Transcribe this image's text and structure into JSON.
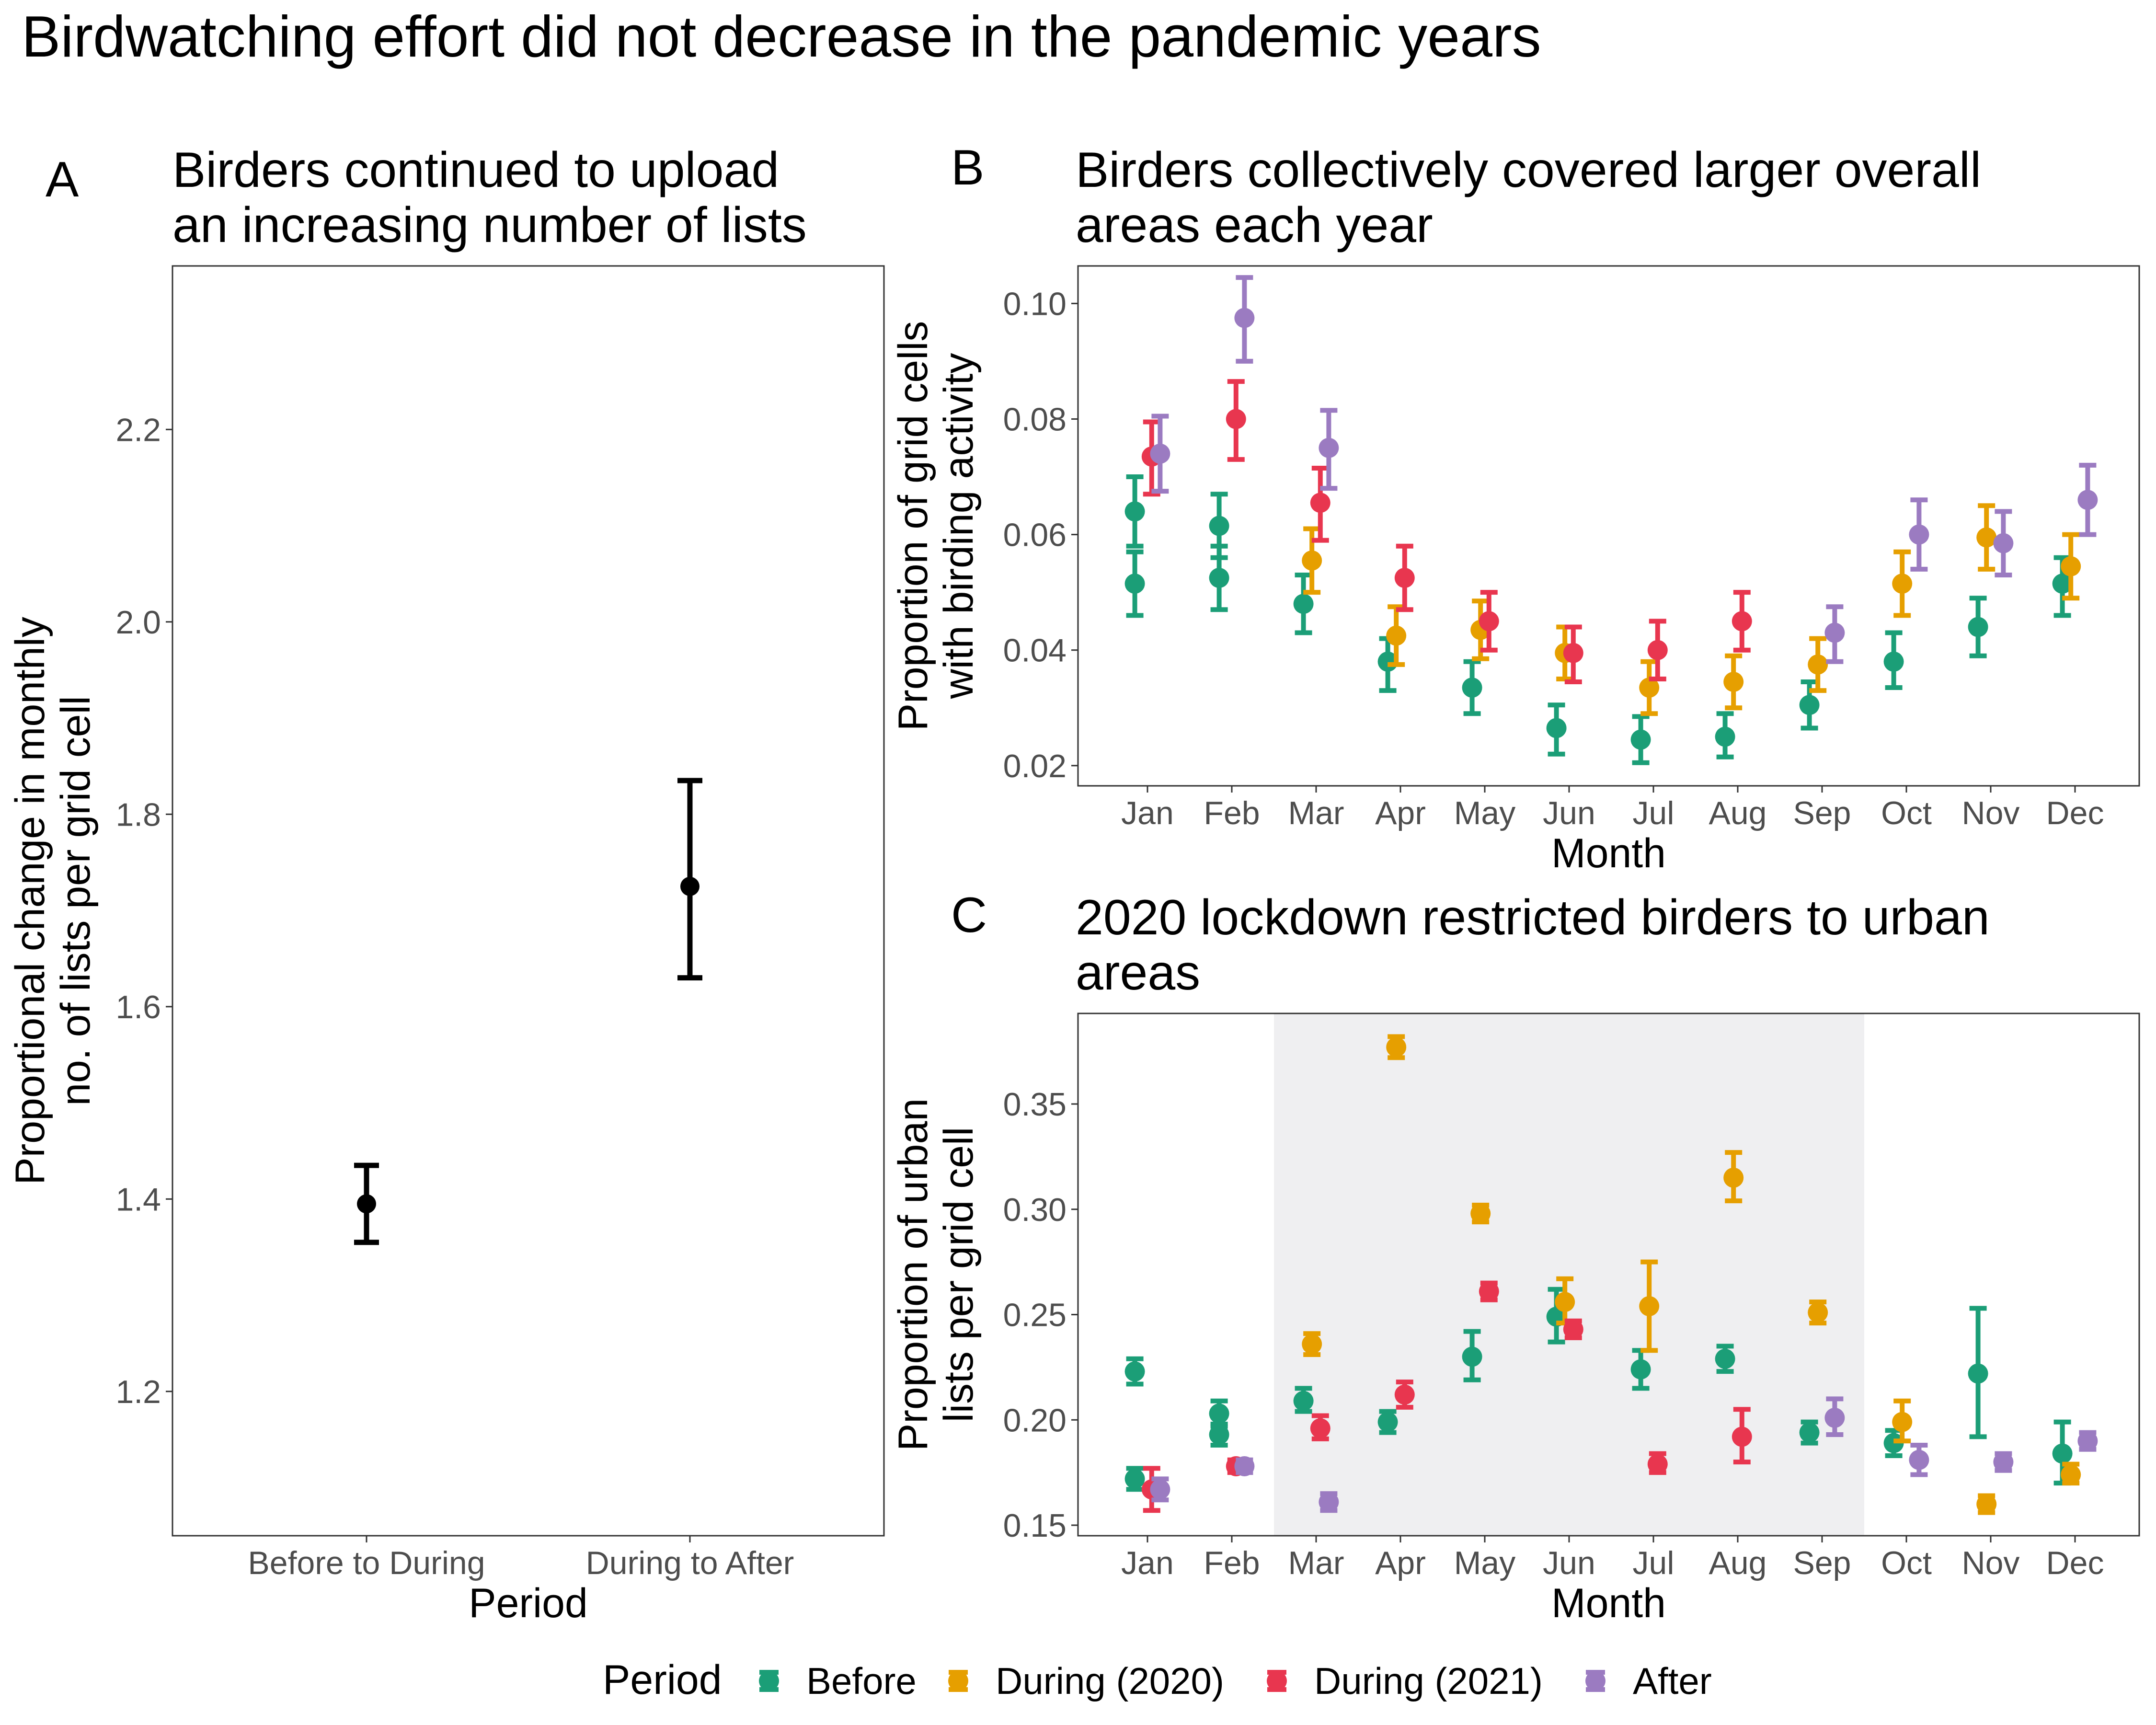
{
  "title": "Birdwatching effort did not decrease in the pandemic years",
  "colors": {
    "Before": "#1b9e77",
    "During (2020)": "#e69f00",
    "During (2021)": "#e8364f",
    "After": "#9b7bc1",
    "single": "#000000",
    "shade": "#efeff1"
  },
  "legend": {
    "title": "Period",
    "items": [
      "Before",
      "During (2020)",
      "During (2021)",
      "After"
    ]
  },
  "chart_data": [
    {
      "id": "A",
      "type": "scatter",
      "letter": "A",
      "title_lines": [
        "Birders continued to upload",
        "an increasing number of lists"
      ],
      "xlabel": "Period",
      "ylabel_lines": [
        "Proportional change in monthly",
        "no. of lists per grid cell"
      ],
      "categories": [
        "Before to During",
        "During to After"
      ],
      "ylim": [
        1.05,
        2.37
      ],
      "yticks": [
        1.2,
        1.4,
        1.6,
        1.8,
        2.0,
        2.2
      ],
      "ytick_labels": [
        "1.2",
        "1.4",
        "1.6",
        "1.8",
        "2.0",
        "2.2"
      ],
      "points": [
        {
          "category": "Before to During",
          "y": 1.395,
          "low": 1.355,
          "high": 1.435
        },
        {
          "category": "During to After",
          "y": 1.725,
          "low": 1.63,
          "high": 1.835
        }
      ]
    },
    {
      "id": "B",
      "type": "scatter",
      "letter": "B",
      "title_lines": [
        "Birders collectively covered larger overall",
        "areas each year"
      ],
      "xlabel": "Month",
      "ylabel_lines": [
        "Proportion of grid cells",
        "with birding activity"
      ],
      "categories": [
        "Jan",
        "Feb",
        "Mar",
        "Apr",
        "May",
        "Jun",
        "Jul",
        "Aug",
        "Sep",
        "Oct",
        "Nov",
        "Dec"
      ],
      "ylim": [
        0.0165,
        0.1065
      ],
      "yticks": [
        0.02,
        0.04,
        0.06,
        0.08,
        0.1
      ],
      "ytick_labels": [
        "0.02",
        "0.04",
        "0.06",
        "0.08",
        "0.10"
      ],
      "series": [
        {
          "name": "Before",
          "offset": -0.15,
          "points": [
            {
              "month": "Jan",
              "y": 0.0515,
              "low": 0.046,
              "high": 0.057
            },
            {
              "month": "Jan",
              "y": 0.064,
              "low": 0.058,
              "high": 0.07
            },
            {
              "month": "Feb",
              "y": 0.0525,
              "low": 0.047,
              "high": 0.058
            },
            {
              "month": "Feb",
              "y": 0.0615,
              "low": 0.056,
              "high": 0.067
            },
            {
              "month": "Mar",
              "y": 0.048,
              "low": 0.043,
              "high": 0.053
            },
            {
              "month": "Apr",
              "y": 0.038,
              "low": 0.033,
              "high": 0.042
            },
            {
              "month": "May",
              "y": 0.0335,
              "low": 0.029,
              "high": 0.038
            },
            {
              "month": "Jun",
              "y": 0.0265,
              "low": 0.022,
              "high": 0.0305
            },
            {
              "month": "Jul",
              "y": 0.0245,
              "low": 0.0205,
              "high": 0.0285
            },
            {
              "month": "Aug",
              "y": 0.025,
              "low": 0.0215,
              "high": 0.029
            },
            {
              "month": "Sep",
              "y": 0.0305,
              "low": 0.0265,
              "high": 0.0345
            },
            {
              "month": "Oct",
              "y": 0.038,
              "low": 0.0335,
              "high": 0.043
            },
            {
              "month": "Nov",
              "y": 0.044,
              "low": 0.039,
              "high": 0.049
            },
            {
              "month": "Dec",
              "y": 0.0515,
              "low": 0.046,
              "high": 0.056
            }
          ]
        },
        {
          "name": "During (2020)",
          "offset": -0.05,
          "points": [
            {
              "month": "Mar",
              "y": 0.0555,
              "low": 0.05,
              "high": 0.061
            },
            {
              "month": "Apr",
              "y": 0.0425,
              "low": 0.0375,
              "high": 0.0475
            },
            {
              "month": "May",
              "y": 0.0435,
              "low": 0.0385,
              "high": 0.0485
            },
            {
              "month": "Jun",
              "y": 0.0395,
              "low": 0.035,
              "high": 0.044
            },
            {
              "month": "Jul",
              "y": 0.0335,
              "low": 0.029,
              "high": 0.038
            },
            {
              "month": "Aug",
              "y": 0.0345,
              "low": 0.03,
              "high": 0.039
            },
            {
              "month": "Sep",
              "y": 0.0375,
              "low": 0.033,
              "high": 0.042
            },
            {
              "month": "Oct",
              "y": 0.0515,
              "low": 0.046,
              "high": 0.057
            },
            {
              "month": "Nov",
              "y": 0.0595,
              "low": 0.054,
              "high": 0.065
            },
            {
              "month": "Dec",
              "y": 0.0545,
              "low": 0.049,
              "high": 0.06
            }
          ]
        },
        {
          "name": "During (2021)",
          "offset": 0.05,
          "points": [
            {
              "month": "Jan",
              "y": 0.0735,
              "low": 0.067,
              "high": 0.0795
            },
            {
              "month": "Feb",
              "y": 0.08,
              "low": 0.073,
              "high": 0.0865
            },
            {
              "month": "Mar",
              "y": 0.0655,
              "low": 0.059,
              "high": 0.0715
            },
            {
              "month": "Apr",
              "y": 0.0525,
              "low": 0.047,
              "high": 0.058
            },
            {
              "month": "May",
              "y": 0.045,
              "low": 0.04,
              "high": 0.05
            },
            {
              "month": "Jun",
              "y": 0.0395,
              "low": 0.0345,
              "high": 0.044
            },
            {
              "month": "Jul",
              "y": 0.04,
              "low": 0.035,
              "high": 0.045
            },
            {
              "month": "Aug",
              "y": 0.045,
              "low": 0.04,
              "high": 0.05
            }
          ]
        },
        {
          "name": "After",
          "offset": 0.15,
          "points": [
            {
              "month": "Jan",
              "y": 0.074,
              "low": 0.0675,
              "high": 0.0805
            },
            {
              "month": "Feb",
              "y": 0.0975,
              "low": 0.09,
              "high": 0.1045
            },
            {
              "month": "Mar",
              "y": 0.075,
              "low": 0.068,
              "high": 0.0815
            },
            {
              "month": "Sep",
              "y": 0.043,
              "low": 0.038,
              "high": 0.0475
            },
            {
              "month": "Oct",
              "y": 0.06,
              "low": 0.054,
              "high": 0.066
            },
            {
              "month": "Nov",
              "y": 0.0585,
              "low": 0.053,
              "high": 0.064
            },
            {
              "month": "Dec",
              "y": 0.066,
              "low": 0.06,
              "high": 0.072
            }
          ]
        }
      ]
    },
    {
      "id": "C",
      "type": "scatter",
      "letter": "C",
      "title_lines": [
        "2020 lockdown restricted birders to urban",
        "areas"
      ],
      "xlabel": "Month",
      "ylabel_lines": [
        "Proportion of urban",
        "lists per grid cell"
      ],
      "categories": [
        "Jan",
        "Feb",
        "Mar",
        "Apr",
        "May",
        "Jun",
        "Jul",
        "Aug",
        "Sep",
        "Oct",
        "Nov",
        "Dec"
      ],
      "ylim": [
        0.145,
        0.393
      ],
      "yticks": [
        0.15,
        0.2,
        0.25,
        0.3,
        0.35
      ],
      "ytick_labels": [
        "0.15",
        "0.20",
        "0.25",
        "0.30",
        "0.35"
      ],
      "shaded_months": [
        "Mar",
        "Sep"
      ],
      "series": [
        {
          "name": "Before",
          "offset": -0.15,
          "points": [
            {
              "month": "Jan",
              "y": 0.223,
              "low": 0.217,
              "high": 0.229
            },
            {
              "month": "Jan",
              "y": 0.172,
              "low": 0.167,
              "high": 0.177
            },
            {
              "month": "Feb",
              "y": 0.203,
              "low": 0.197,
              "high": 0.209
            },
            {
              "month": "Feb",
              "y": 0.193,
              "low": 0.188,
              "high": 0.198
            },
            {
              "month": "Mar",
              "y": 0.209,
              "low": 0.204,
              "high": 0.215
            },
            {
              "month": "Apr",
              "y": 0.199,
              "low": 0.194,
              "high": 0.204
            },
            {
              "month": "May",
              "y": 0.23,
              "low": 0.219,
              "high": 0.242
            },
            {
              "month": "Jun",
              "y": 0.249,
              "low": 0.237,
              "high": 0.262
            },
            {
              "month": "Jul",
              "y": 0.224,
              "low": 0.215,
              "high": 0.233
            },
            {
              "month": "Aug",
              "y": 0.229,
              "low": 0.223,
              "high": 0.235
            },
            {
              "month": "Sep",
              "y": 0.194,
              "low": 0.189,
              "high": 0.199
            },
            {
              "month": "Oct",
              "y": 0.189,
              "low": 0.183,
              "high": 0.195
            },
            {
              "month": "Nov",
              "y": 0.222,
              "low": 0.192,
              "high": 0.253
            },
            {
              "month": "Dec",
              "y": 0.184,
              "low": 0.17,
              "high": 0.199
            }
          ]
        },
        {
          "name": "During (2020)",
          "offset": -0.05,
          "points": [
            {
              "month": "Mar",
              "y": 0.236,
              "low": 0.231,
              "high": 0.241
            },
            {
              "month": "Apr",
              "y": 0.377,
              "low": 0.372,
              "high": 0.382
            },
            {
              "month": "May",
              "y": 0.298,
              "low": 0.294,
              "high": 0.302
            },
            {
              "month": "Jun",
              "y": 0.256,
              "low": 0.246,
              "high": 0.267
            },
            {
              "month": "Jul",
              "y": 0.254,
              "low": 0.233,
              "high": 0.275
            },
            {
              "month": "Aug",
              "y": 0.315,
              "low": 0.304,
              "high": 0.327
            },
            {
              "month": "Sep",
              "y": 0.251,
              "low": 0.246,
              "high": 0.256
            },
            {
              "month": "Oct",
              "y": 0.199,
              "low": 0.19,
              "high": 0.209
            },
            {
              "month": "Nov",
              "y": 0.16,
              "low": 0.156,
              "high": 0.164
            },
            {
              "month": "Dec",
              "y": 0.174,
              "low": 0.17,
              "high": 0.179
            }
          ]
        },
        {
          "name": "During (2021)",
          "offset": 0.05,
          "points": [
            {
              "month": "Jan",
              "y": 0.167,
              "low": 0.157,
              "high": 0.177
            },
            {
              "month": "Feb",
              "y": 0.178,
              "low": 0.175,
              "high": 0.181
            },
            {
              "month": "Mar",
              "y": 0.196,
              "low": 0.191,
              "high": 0.202
            },
            {
              "month": "Apr",
              "y": 0.212,
              "low": 0.206,
              "high": 0.218
            },
            {
              "month": "May",
              "y": 0.261,
              "low": 0.257,
              "high": 0.265
            },
            {
              "month": "Jun",
              "y": 0.243,
              "low": 0.239,
              "high": 0.247
            },
            {
              "month": "Jul",
              "y": 0.179,
              "low": 0.175,
              "high": 0.184
            },
            {
              "month": "Aug",
              "y": 0.192,
              "low": 0.18,
              "high": 0.205
            }
          ]
        },
        {
          "name": "After",
          "offset": 0.15,
          "points": [
            {
              "month": "Jan",
              "y": 0.167,
              "low": 0.162,
              "high": 0.172
            },
            {
              "month": "Feb",
              "y": 0.178,
              "low": 0.175,
              "high": 0.181
            },
            {
              "month": "Mar",
              "y": 0.161,
              "low": 0.157,
              "high": 0.165
            },
            {
              "month": "Sep",
              "y": 0.201,
              "low": 0.193,
              "high": 0.21
            },
            {
              "month": "Oct",
              "y": 0.181,
              "low": 0.174,
              "high": 0.188
            },
            {
              "month": "Nov",
              "y": 0.18,
              "low": 0.176,
              "high": 0.184
            },
            {
              "month": "Dec",
              "y": 0.19,
              "low": 0.186,
              "high": 0.194
            }
          ]
        }
      ]
    }
  ]
}
